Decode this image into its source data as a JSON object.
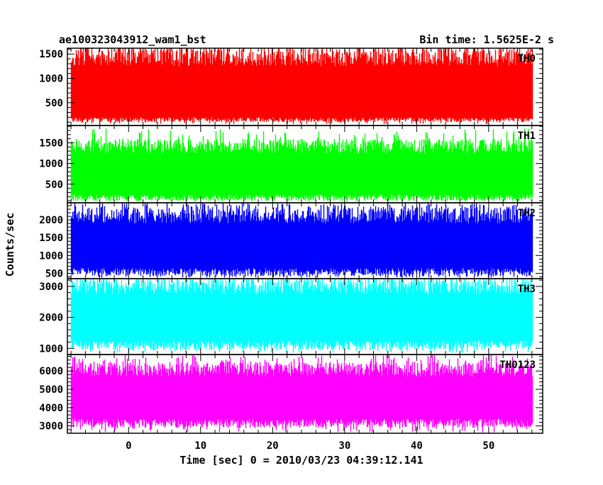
{
  "header": {
    "left_title": "ae100323043912_wam1_bst",
    "right_title": "Bin time: 1.5625E-2 s"
  },
  "chart_data": {
    "type": "line",
    "xlabel": "Time [sec] 0 = 2010/03/23 04:39:12.141",
    "ylabel": "Counts/sec",
    "xlim": [
      -8.5,
      57.5
    ],
    "x_data_range": [
      -8.0,
      56.0
    ],
    "x_ticks": [
      0,
      10,
      20,
      30,
      40,
      50
    ],
    "x_minor_step": 2,
    "grid": false,
    "legend": "none",
    "panels": [
      {
        "name": "TH0",
        "color": "#ff0000",
        "ylim": [
          30,
          1620
        ],
        "y_ticks": [
          500,
          1000,
          1500
        ],
        "y_minor_step": 100,
        "band_low": [
          100,
          200
        ],
        "band_high": [
          1250,
          1620
        ],
        "spike_high": 1620,
        "spike_low": 60
      },
      {
        "name": "TH1",
        "color": "#00ff00",
        "ylim": [
          50,
          1920
        ],
        "y_ticks": [
          500,
          1000,
          1500
        ],
        "y_minor_step": 100,
        "band_low": [
          100,
          250
        ],
        "band_high": [
          1250,
          1600
        ],
        "spike_high": 1850,
        "spike_low": 100
      },
      {
        "name": "TH2",
        "color": "#0000ff",
        "ylim": [
          350,
          2480
        ],
        "y_ticks": [
          500,
          1000,
          1500,
          2000
        ],
        "y_minor_step": 100,
        "band_low": [
          430,
          650
        ],
        "band_high": [
          1900,
          2350
        ],
        "spike_high": 2480,
        "spike_low": 380
      },
      {
        "name": "TH3",
        "color": "#00ffff",
        "ylim": [
          800,
          3250
        ],
        "y_ticks": [
          1000,
          2000,
          3000
        ],
        "y_minor_step": 200,
        "band_low": [
          950,
          1250
        ],
        "band_high": [
          2750,
          3250
        ],
        "spike_high": 3250,
        "spike_low": 850
      },
      {
        "name": "TH0123",
        "color": "#ff00ff",
        "ylim": [
          2600,
          6900
        ],
        "y_ticks": [
          3000,
          4000,
          5000,
          6000
        ],
        "y_minor_step": 200,
        "band_low": [
          2900,
          3400
        ],
        "band_high": [
          5700,
          6500
        ],
        "spike_high": 6900,
        "spike_low": 2650
      }
    ]
  }
}
